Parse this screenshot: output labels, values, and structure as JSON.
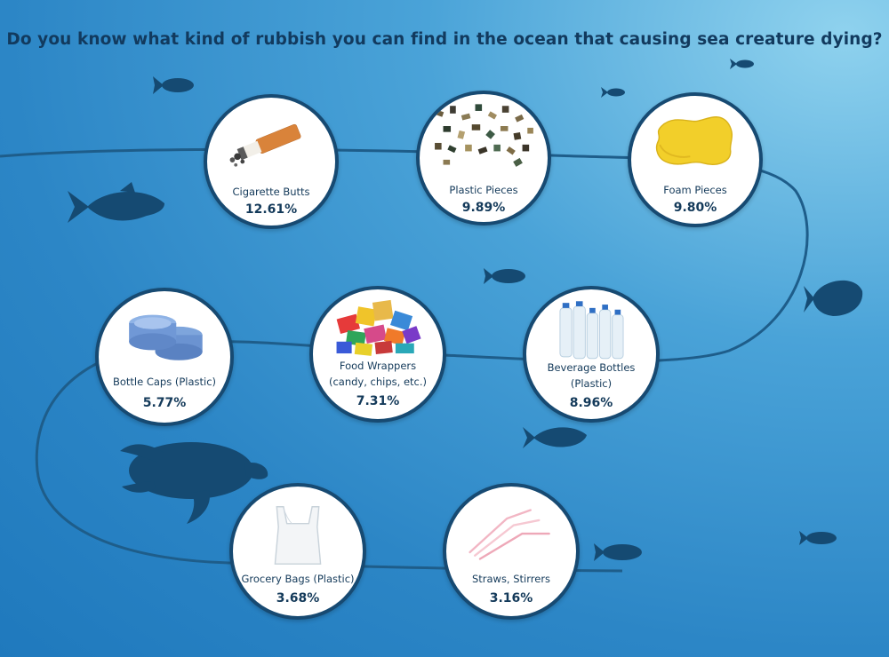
{
  "title": "Do you know what kind of rubbish you can find in the ocean that causing sea creature dying?",
  "colors": {
    "ocean_light": "#8fd2ee",
    "ocean_dark": "#1f79bd",
    "silhouette": "#154a72",
    "card_border": "#174a72"
  },
  "items": [
    {
      "label": "Cigarette Butts",
      "percent": "12.61%"
    },
    {
      "label": "Plastic Pieces",
      "percent": "9.89%"
    },
    {
      "label": "Foam Pieces",
      "percent": "9.80%"
    },
    {
      "label": "Bottle Caps (Plastic)",
      "percent": "5.77%"
    },
    {
      "label": "Food Wrappers",
      "label2": "(candy, chips, etc.)",
      "percent": "7.31%"
    },
    {
      "label": "Beverage Bottles",
      "label2": "(Plastic)",
      "percent": "8.96%"
    },
    {
      "label": "Grocery Bags (Plastic)",
      "percent": "3.68%"
    },
    {
      "label": "Straws, Stirrers",
      "percent": "3.16%"
    }
  ]
}
